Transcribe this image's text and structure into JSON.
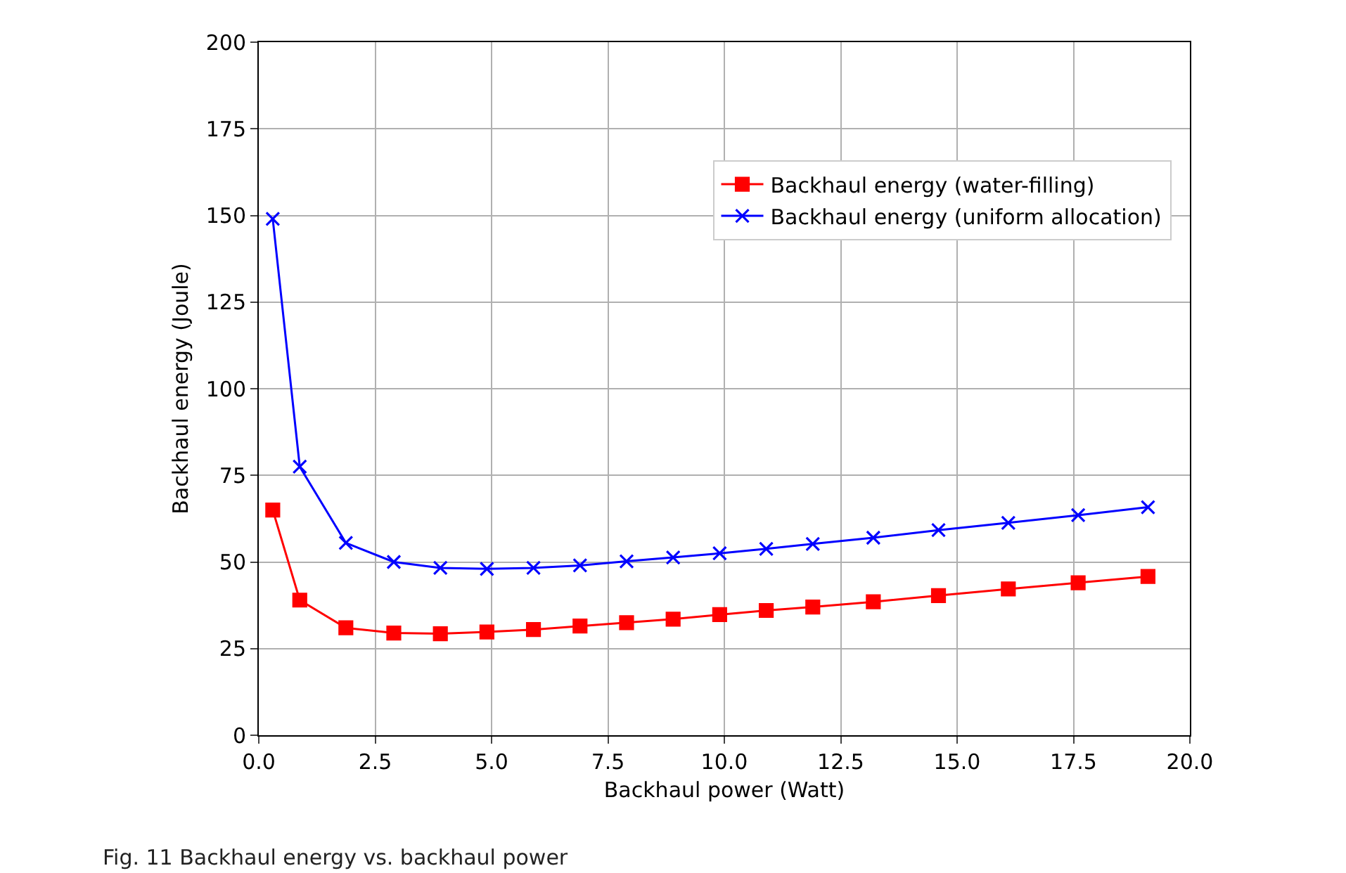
{
  "chart_data": {
    "type": "line",
    "xlabel": "Backhaul power (Watt)",
    "ylabel": "Backhaul energy (Joule)",
    "x": [
      0.3,
      0.88,
      1.87,
      2.9,
      3.9,
      4.9,
      5.9,
      6.9,
      7.9,
      8.9,
      9.9,
      10.9,
      11.9,
      13.2,
      14.6,
      16.1,
      17.6,
      19.1
    ],
    "series": [
      {
        "name": "Backhaul energy (water-filling)",
        "color": "#ff0000",
        "marker": "square",
        "values": [
          65,
          39,
          31,
          29.5,
          29.3,
          29.8,
          30.5,
          31.5,
          32.5,
          33.5,
          34.8,
          36,
          37,
          38.5,
          40.3,
          42.2,
          44,
          45.8
        ]
      },
      {
        "name": "Backhaul energy (uniform allocation)",
        "color": "#0000ff",
        "marker": "cross",
        "values": [
          149,
          77.5,
          55.5,
          50,
          48.3,
          48,
          48.3,
          49,
          50.2,
          51.3,
          52.5,
          53.8,
          55.2,
          57,
          59.2,
          61.3,
          63.5,
          65.8
        ]
      }
    ],
    "xlim": [
      0,
      20
    ],
    "xticks": [
      {
        "value": 0,
        "label": "0.0"
      },
      {
        "value": 2.5,
        "label": "2.5"
      },
      {
        "value": 5,
        "label": "5.0"
      },
      {
        "value": 7.5,
        "label": "7.5"
      },
      {
        "value": 10,
        "label": "10.0"
      },
      {
        "value": 12.5,
        "label": "12.5"
      },
      {
        "value": 15,
        "label": "15.0"
      },
      {
        "value": 17.5,
        "label": "17.5"
      },
      {
        "value": 20,
        "label": "20.0"
      }
    ],
    "ylim": [
      0,
      200
    ],
    "yticks": [
      0,
      25,
      50,
      75,
      100,
      125,
      150,
      175,
      200
    ],
    "grid": true,
    "legend": "top right",
    "line_style": "solid",
    "annotations": [
      "Fig. 11 Backhaul energy vs. backhaul power"
    ]
  }
}
